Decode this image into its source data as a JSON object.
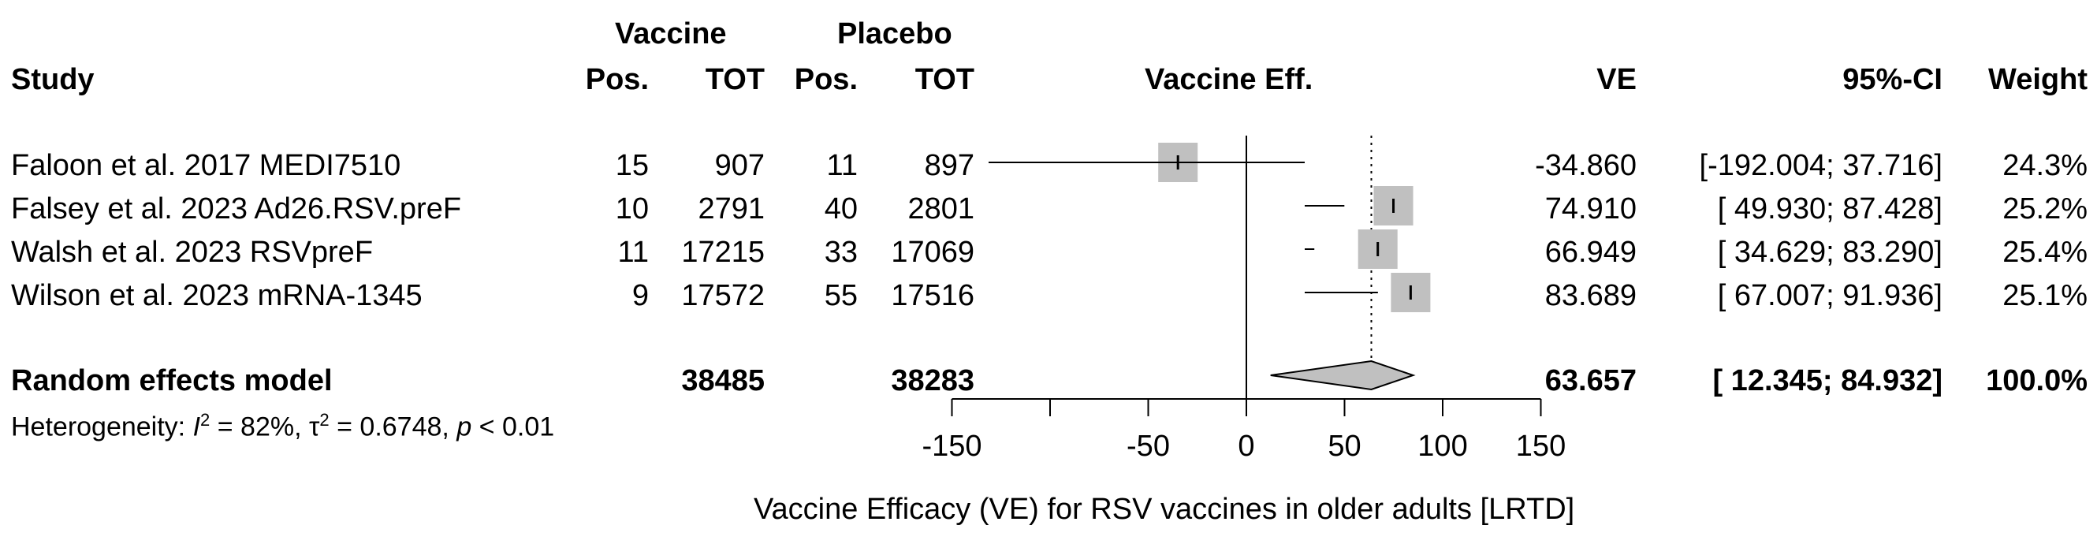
{
  "header": {
    "vaccine_group": "Vaccine",
    "placebo_group": "Placebo",
    "study": "Study",
    "pos": "Pos.",
    "tot": "TOT",
    "plot_label": "Vaccine Eff.",
    "ve": "VE",
    "ci": "95%-CI",
    "weight": "Weight"
  },
  "studies": [
    {
      "name": "Faloon et al. 2017 MEDI7510",
      "vac_pos": "15",
      "vac_tot": "907",
      "pla_pos": "11",
      "pla_tot": "897",
      "ve": "-34.860",
      "ci": "[-192.004; 37.716]",
      "weight": "24.3%"
    },
    {
      "name": "Falsey et al. 2023 Ad26.RSV.preF",
      "vac_pos": "10",
      "vac_tot": "2791",
      "pla_pos": "40",
      "pla_tot": "2801",
      "ve": "74.910",
      "ci": "[  49.930; 87.428]",
      "weight": "25.2%"
    },
    {
      "name": "Walsh et al. 2023 RSVpreF",
      "vac_pos": "11",
      "vac_tot": "17215",
      "pla_pos": "33",
      "pla_tot": "17069",
      "ve": "66.949",
      "ci": "[  34.629; 83.290]",
      "weight": "25.4%"
    },
    {
      "name": "Wilson et al. 2023 mRNA-1345",
      "vac_pos": "9",
      "vac_tot": "17572",
      "pla_pos": "55",
      "pla_tot": "17516",
      "ve": "83.689",
      "ci": "[  67.007; 91.936]",
      "weight": "25.1%"
    }
  ],
  "pooled": {
    "name": "Random effects model",
    "vac_tot": "38485",
    "pla_tot": "38283",
    "ve": "63.657",
    "ci": "[  12.345; 84.932]",
    "weight": "100.0%"
  },
  "heterogeneity": {
    "prefix": "Heterogeneity: ",
    "i2": "I",
    "i2_value": " = 82%, τ",
    "tau_value": " = 0.6748, ",
    "p": "p",
    "p_value": " < 0.01",
    "sup": "2"
  },
  "chart_data": {
    "type": "forest",
    "xlabel": "Vaccine Efficacy (VE) for RSV vaccines in older adults [LRTD]",
    "xlim": [
      -250,
      250
    ],
    "ticks": [
      -150,
      -100,
      -50,
      0,
      50,
      100,
      150
    ],
    "tick_labels": [
      {
        "value": -150,
        "label": "-150"
      },
      {
        "value": -50,
        "label": "-50"
      },
      {
        "value": 0,
        "label": "0"
      },
      {
        "value": 50,
        "label": "50"
      },
      {
        "value": 100,
        "label": "100"
      },
      {
        "value": 150,
        "label": "150"
      }
    ],
    "null_line": 0,
    "pooled_line": 63.657,
    "points": [
      {
        "ve": -34.86,
        "lo": -192.004,
        "hi": 37.716,
        "weight": 24.3
      },
      {
        "ve": 74.91,
        "lo": 49.93,
        "hi": 87.428,
        "weight": 25.2
      },
      {
        "ve": 66.949,
        "lo": 34.629,
        "hi": 83.29,
        "weight": 25.4
      },
      {
        "ve": 83.689,
        "lo": 67.007,
        "hi": 91.936,
        "weight": 25.1
      }
    ],
    "diamond": {
      "ve": 63.657,
      "lo": 12.345,
      "hi": 84.932
    },
    "box_color": "#c0c0c0",
    "diamond_color": "#c0c0c0"
  }
}
